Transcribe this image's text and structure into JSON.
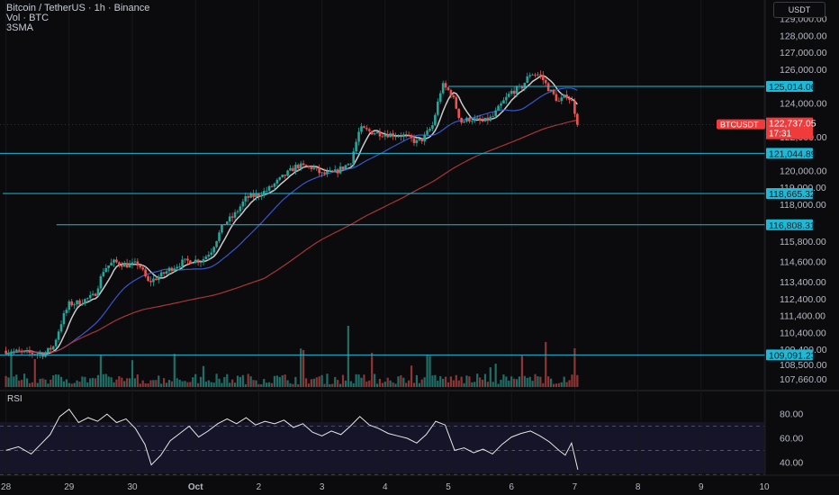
{
  "header": {
    "symbol": "Bitcoin / TetherUS · 1h · Binance",
    "volume": "Vol · BTC",
    "indicator": "3SMA"
  },
  "currency_button": "USDT",
  "rsi_label": "RSI",
  "colors": {
    "background": "#0b0b0e",
    "up": "#26a69a",
    "down": "#ef5350",
    "level_line": "#1fb9d6",
    "sma_fast": "#e0e0e0",
    "sma_mid": "#3c5fe0",
    "sma_slow": "#b83a3a",
    "rsi_line": "#e8e8e8",
    "price_tag": "#ef3b3b"
  },
  "chart_data": {
    "type": "candlestick",
    "symbol": "BTCUSDT",
    "timeframe": "1h",
    "ylim": [
      107300,
      129600
    ],
    "y_ticks": [
      "129,000.00",
      "128,000.00",
      "127,000.00",
      "126,000.00",
      "124,000.00",
      "122,000.00",
      "120,000.00",
      "119,000.00",
      "118,000.00",
      "115,800.00",
      "114,600.00",
      "113,400.00",
      "112,400.00",
      "111,400.00",
      "110,400.00",
      "109,400.00",
      "108,500.00",
      "107,660.00"
    ],
    "x_ticks": [
      {
        "label": "28",
        "day": 0
      },
      {
        "label": "29",
        "day": 1
      },
      {
        "label": "30",
        "day": 2
      },
      {
        "label": "Oct",
        "day": 3
      },
      {
        "label": "2",
        "day": 4
      },
      {
        "label": "3",
        "day": 5
      },
      {
        "label": "4",
        "day": 6
      },
      {
        "label": "5",
        "day": 7
      },
      {
        "label": "6",
        "day": 8
      },
      {
        "label": "7",
        "day": 9
      },
      {
        "label": "8",
        "day": 10
      },
      {
        "label": "9",
        "day": 11
      },
      {
        "label": "10",
        "day": 12
      }
    ],
    "close_path": [
      {
        "day": 0.0,
        "price": 109350
      },
      {
        "day": 0.35,
        "price": 109200
      },
      {
        "day": 0.6,
        "price": 109150
      },
      {
        "day": 0.75,
        "price": 109600
      },
      {
        "day": 0.9,
        "price": 111300
      },
      {
        "day": 1.0,
        "price": 112100
      },
      {
        "day": 1.15,
        "price": 112200
      },
      {
        "day": 1.4,
        "price": 112600
      },
      {
        "day": 1.55,
        "price": 114200
      },
      {
        "day": 1.7,
        "price": 114600
      },
      {
        "day": 1.95,
        "price": 114400
      },
      {
        "day": 2.1,
        "price": 114500
      },
      {
        "day": 2.25,
        "price": 113400
      },
      {
        "day": 2.45,
        "price": 113800
      },
      {
        "day": 2.6,
        "price": 114200
      },
      {
        "day": 2.8,
        "price": 114600
      },
      {
        "day": 2.95,
        "price": 114700
      },
      {
        "day": 3.1,
        "price": 114700
      },
      {
        "day": 3.25,
        "price": 115300
      },
      {
        "day": 3.45,
        "price": 116900
      },
      {
        "day": 3.6,
        "price": 117300
      },
      {
        "day": 3.8,
        "price": 118400
      },
      {
        "day": 4.0,
        "price": 118600
      },
      {
        "day": 4.15,
        "price": 118900
      },
      {
        "day": 4.4,
        "price": 119700
      },
      {
        "day": 4.6,
        "price": 120300
      },
      {
        "day": 4.85,
        "price": 120200
      },
      {
        "day": 5.0,
        "price": 119800
      },
      {
        "day": 5.2,
        "price": 119900
      },
      {
        "day": 5.45,
        "price": 120500
      },
      {
        "day": 5.6,
        "price": 122500
      },
      {
        "day": 5.8,
        "price": 122300
      },
      {
        "day": 6.0,
        "price": 122200
      },
      {
        "day": 6.3,
        "price": 122100
      },
      {
        "day": 6.5,
        "price": 121700
      },
      {
        "day": 6.6,
        "price": 121900
      },
      {
        "day": 6.75,
        "price": 122700
      },
      {
        "day": 6.9,
        "price": 125100
      },
      {
        "day": 7.05,
        "price": 124600
      },
      {
        "day": 7.2,
        "price": 122900
      },
      {
        "day": 7.35,
        "price": 123100
      },
      {
        "day": 7.55,
        "price": 122900
      },
      {
        "day": 7.7,
        "price": 123200
      },
      {
        "day": 7.85,
        "price": 124000
      },
      {
        "day": 8.0,
        "price": 124700
      },
      {
        "day": 8.15,
        "price": 124900
      },
      {
        "day": 8.3,
        "price": 125800
      },
      {
        "day": 8.45,
        "price": 125700
      },
      {
        "day": 8.6,
        "price": 124800
      },
      {
        "day": 8.75,
        "price": 124100
      },
      {
        "day": 8.88,
        "price": 124500
      },
      {
        "day": 8.97,
        "price": 124000
      },
      {
        "day": 9.05,
        "price": 122740
      }
    ],
    "horizontal_levels": [
      {
        "price": 125014.06,
        "label": "125,014.06",
        "from_day": 7.0
      },
      {
        "price": 121044.89,
        "label": "121,044.89",
        "from_day": -0.5
      },
      {
        "price": 118665.32,
        "label": "118,665.32",
        "from_day": -0.05
      },
      {
        "price": 116808.31,
        "label": "116,808.31",
        "from_day": 0.8
      },
      {
        "price": 109091.23,
        "label": "109,091.23",
        "from_day": -0.5
      }
    ],
    "last_price": {
      "symbol": "BTCUSDT",
      "price": 122737.05,
      "label": "122,737.05",
      "countdown": "17:31"
    },
    "sma_periods": [
      7,
      25,
      99
    ],
    "volume_unit": "BTC",
    "rsi": {
      "levels": [
        {
          "label": "80.00",
          "value": 80
        },
        {
          "label": "60.00",
          "value": 60
        },
        {
          "label": "40.00",
          "value": 40
        }
      ],
      "bands": [
        30,
        50,
        70
      ],
      "ylim": [
        28,
        86
      ],
      "path": [
        {
          "day": 0.0,
          "value": 50
        },
        {
          "day": 0.2,
          "value": 53
        },
        {
          "day": 0.4,
          "value": 47
        },
        {
          "day": 0.55,
          "value": 55
        },
        {
          "day": 0.7,
          "value": 63
        },
        {
          "day": 0.85,
          "value": 78
        },
        {
          "day": 1.0,
          "value": 84
        },
        {
          "day": 1.15,
          "value": 73
        },
        {
          "day": 1.3,
          "value": 77
        },
        {
          "day": 1.45,
          "value": 74
        },
        {
          "day": 1.6,
          "value": 80
        },
        {
          "day": 1.75,
          "value": 73
        },
        {
          "day": 1.9,
          "value": 76
        },
        {
          "day": 2.05,
          "value": 68
        },
        {
          "day": 2.2,
          "value": 55
        },
        {
          "day": 2.3,
          "value": 38
        },
        {
          "day": 2.45,
          "value": 46
        },
        {
          "day": 2.6,
          "value": 58
        },
        {
          "day": 2.75,
          "value": 64
        },
        {
          "day": 2.9,
          "value": 70
        },
        {
          "day": 3.05,
          "value": 61
        },
        {
          "day": 3.2,
          "value": 66
        },
        {
          "day": 3.35,
          "value": 72
        },
        {
          "day": 3.5,
          "value": 76
        },
        {
          "day": 3.65,
          "value": 72
        },
        {
          "day": 3.8,
          "value": 77
        },
        {
          "day": 3.95,
          "value": 71
        },
        {
          "day": 4.1,
          "value": 74
        },
        {
          "day": 4.25,
          "value": 72
        },
        {
          "day": 4.4,
          "value": 75
        },
        {
          "day": 4.55,
          "value": 69
        },
        {
          "day": 4.7,
          "value": 72
        },
        {
          "day": 4.85,
          "value": 65
        },
        {
          "day": 5.0,
          "value": 62
        },
        {
          "day": 5.15,
          "value": 66
        },
        {
          "day": 5.3,
          "value": 63
        },
        {
          "day": 5.45,
          "value": 70
        },
        {
          "day": 5.6,
          "value": 78
        },
        {
          "day": 5.75,
          "value": 71
        },
        {
          "day": 5.9,
          "value": 68
        },
        {
          "day": 6.05,
          "value": 64
        },
        {
          "day": 6.2,
          "value": 62
        },
        {
          "day": 6.35,
          "value": 60
        },
        {
          "day": 6.5,
          "value": 56
        },
        {
          "day": 6.65,
          "value": 63
        },
        {
          "day": 6.8,
          "value": 74
        },
        {
          "day": 6.95,
          "value": 71
        },
        {
          "day": 7.1,
          "value": 50
        },
        {
          "day": 7.25,
          "value": 52
        },
        {
          "day": 7.4,
          "value": 48
        },
        {
          "day": 7.55,
          "value": 51
        },
        {
          "day": 7.7,
          "value": 47
        },
        {
          "day": 7.85,
          "value": 55
        },
        {
          "day": 8.0,
          "value": 61
        },
        {
          "day": 8.15,
          "value": 64
        },
        {
          "day": 8.3,
          "value": 66
        },
        {
          "day": 8.45,
          "value": 62
        },
        {
          "day": 8.6,
          "value": 57
        },
        {
          "day": 8.75,
          "value": 50
        },
        {
          "day": 8.85,
          "value": 46
        },
        {
          "day": 8.95,
          "value": 56
        },
        {
          "day": 9.05,
          "value": 34
        }
      ]
    }
  }
}
